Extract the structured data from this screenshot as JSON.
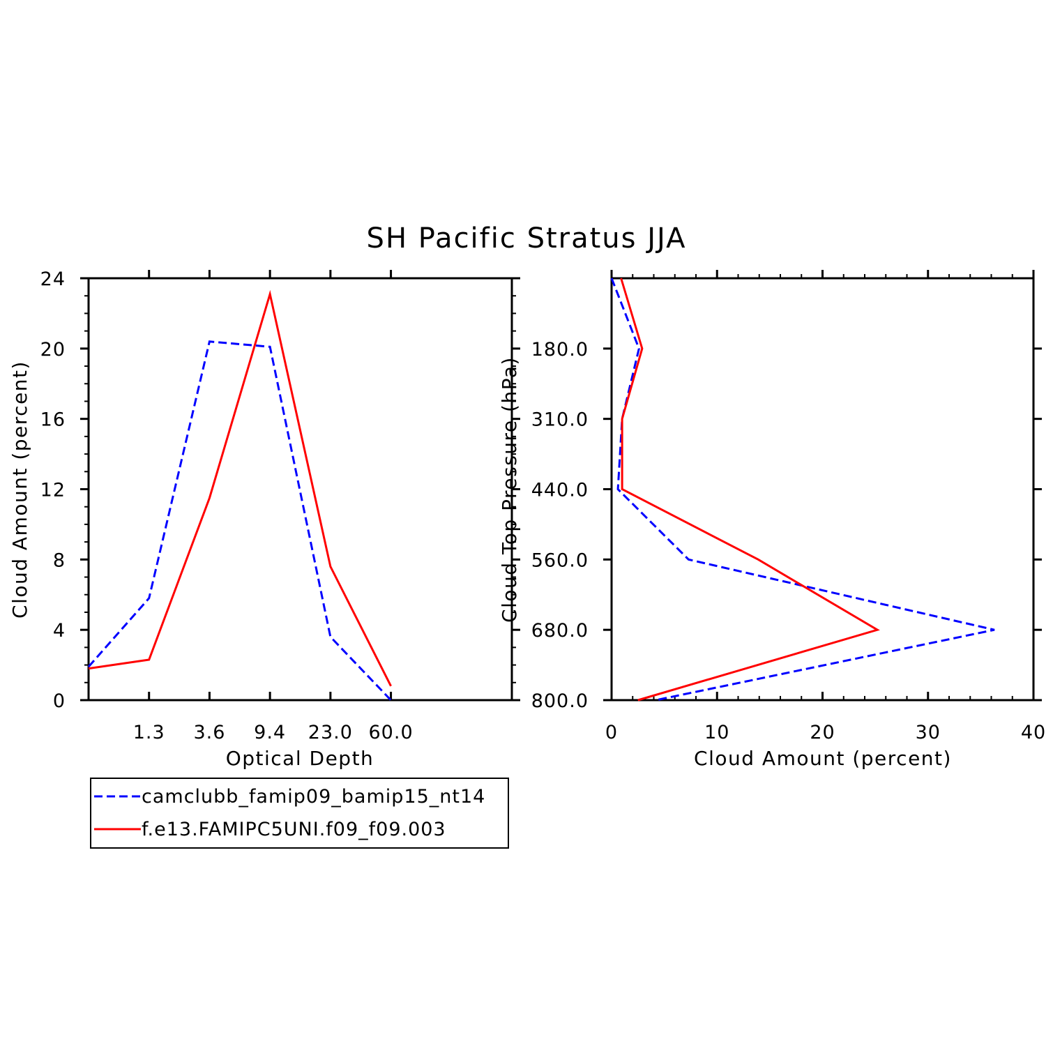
{
  "title": "SH Pacific Stratus JJA",
  "colors": {
    "series_a": "#0000ff",
    "series_b": "#ff0000",
    "axis": "#000000"
  },
  "chart_data": [
    {
      "type": "line",
      "id": "optical-depth",
      "xlabel": "Optical Depth",
      "ylabel": "Cloud Amount (percent)",
      "x_tick_labels": [
        "1.3",
        "3.6",
        "9.4",
        "23.0",
        "60.0"
      ],
      "x_bins": 7,
      "ylim": [
        0,
        24
      ],
      "y_ticks": [
        0,
        4,
        8,
        12,
        16,
        20,
        24
      ],
      "series": [
        {
          "name": "camclubb_famip09_bamip15_nt14",
          "style": "dashed",
          "color": "#0000ff",
          "values": [
            1.9,
            5.8,
            20.4,
            20.1,
            3.6,
            0.0
          ]
        },
        {
          "name": "f.e13.FAMIPC5UNI.f09_f09.003",
          "style": "solid",
          "color": "#ff0000",
          "values": [
            1.8,
            2.3,
            11.5,
            23.1,
            7.6,
            0.8
          ]
        }
      ]
    },
    {
      "type": "line",
      "id": "cloud-top-pressure",
      "xlabel": "Cloud Amount (percent)",
      "ylabel": "Cloud Top Pressure (hPa)",
      "xlim": [
        0,
        40
      ],
      "x_ticks": [
        0,
        10,
        20,
        30,
        40
      ],
      "y_tick_labels": [
        "180.0",
        "310.0",
        "440.0",
        "560.0",
        "680.0",
        "800.0"
      ],
      "y_bins": 6,
      "series": [
        {
          "name": "camclubb_famip09_bamip15_nt14",
          "style": "dashed",
          "color": "#0000ff",
          "values": [
            0.0,
            2.6,
            1.0,
            0.6,
            7.3,
            36.3,
            4.2
          ]
        },
        {
          "name": "f.e13.FAMIPC5UNI.f09_f09.003",
          "style": "solid",
          "color": "#ff0000",
          "values": [
            0.9,
            2.9,
            1.0,
            1.0,
            13.9,
            25.2,
            2.5
          ]
        }
      ]
    }
  ],
  "legend": {
    "entries": [
      "camclubb_famip09_bamip15_nt14",
      "f.e13.FAMIPC5UNI.f09_f09.003"
    ]
  }
}
